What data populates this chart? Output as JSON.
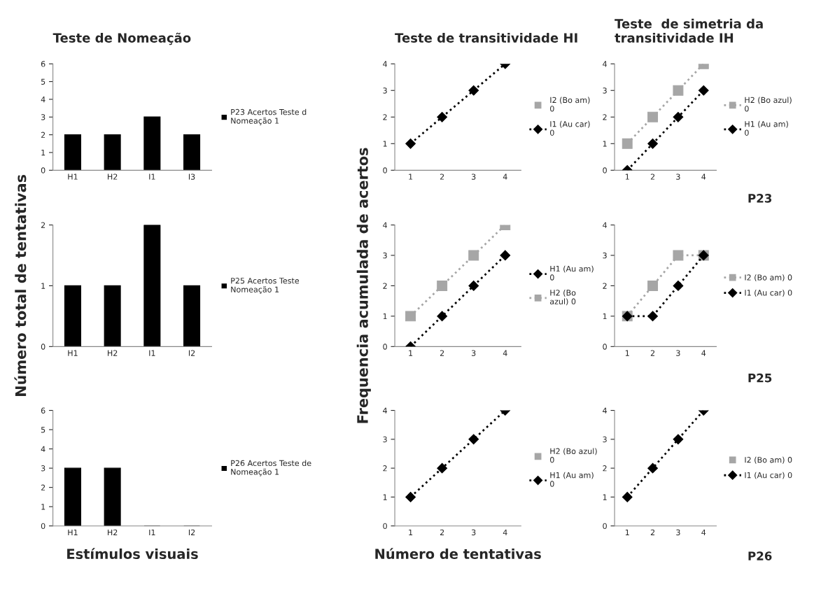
{
  "chart_data": [
    {
      "type": "bar",
      "title": "Teste de Nomeação",
      "categories": [
        "H1",
        "H2",
        "I1",
        "I3"
      ],
      "ylim": [
        0,
        6
      ],
      "yticks": [
        0,
        1,
        2,
        3,
        4,
        5,
        6
      ],
      "legend": "right",
      "grid": false,
      "series": [
        {
          "name": "P23 Acertos Teste d\nNomeação 1",
          "color": "#000000",
          "values": [
            2,
            2,
            3,
            2
          ]
        }
      ]
    },
    {
      "type": "line",
      "title": "Teste de transitividade HI",
      "categories": [
        "1",
        "2",
        "3",
        "4"
      ],
      "ylim": [
        0,
        4
      ],
      "yticks": [
        0,
        1,
        2,
        3,
        4
      ],
      "legend": "right",
      "grid": false,
      "series": [
        {
          "name": "I2 (Bo am)\n0",
          "color": "#a6a6a6",
          "marker": "square",
          "line_style": "none",
          "values": [
            null,
            null,
            null,
            null
          ]
        },
        {
          "name": "I1 (Au car)\n0",
          "color": "#000000",
          "marker": "diamond",
          "line_style": "dotted",
          "values": [
            1,
            2,
            3,
            4
          ]
        }
      ]
    },
    {
      "type": "line",
      "title": "Teste  de simetria da\ntransitividade IH",
      "categories": [
        "1",
        "2",
        "3",
        "4"
      ],
      "ylim": [
        0,
        4
      ],
      "yticks": [
        0,
        1,
        2,
        3,
        4
      ],
      "legend": "right",
      "grid": false,
      "annotations": [
        "P23"
      ],
      "series": [
        {
          "name": "H2 (Bo azul)\n0",
          "color": "#a6a6a6",
          "marker": "square",
          "line_style": "dotted",
          "values": [
            1,
            2,
            3,
            4
          ]
        },
        {
          "name": "H1 (Au am)\n0",
          "color": "#000000",
          "marker": "diamond",
          "line_style": "dotted",
          "values": [
            0,
            1,
            2,
            3
          ]
        }
      ]
    },
    {
      "type": "bar",
      "ylabel": "Número total de tentativas",
      "categories": [
        "H1",
        "H2",
        "I1",
        "I2"
      ],
      "ylim": [
        0,
        2
      ],
      "yticks": [
        0,
        1,
        2
      ],
      "legend": "right",
      "grid": false,
      "series": [
        {
          "name": "P25 Acertos Teste\nNomeação 1",
          "color": "#000000",
          "values": [
            1,
            1,
            2,
            1
          ]
        }
      ]
    },
    {
      "type": "line",
      "ylabel": "Frequencia acumulada de acertos",
      "categories": [
        "1",
        "2",
        "3",
        "4"
      ],
      "ylim": [
        0,
        4
      ],
      "yticks": [
        0,
        1,
        2,
        3,
        4
      ],
      "legend": "right",
      "grid": false,
      "series": [
        {
          "name": "H1 (Au am)\n0",
          "color": "#000000",
          "marker": "diamond",
          "line_style": "dotted",
          "values": [
            0,
            1,
            2,
            3
          ]
        },
        {
          "name": "H2 (Bo\nazul) 0",
          "color": "#a6a6a6",
          "marker": "square",
          "line_style": "dotted",
          "values": [
            1,
            2,
            3,
            4
          ]
        }
      ]
    },
    {
      "type": "line",
      "categories": [
        "1",
        "2",
        "3",
        "4"
      ],
      "ylim": [
        0,
        4
      ],
      "yticks": [
        0,
        1,
        2,
        3,
        4
      ],
      "legend": "right",
      "grid": false,
      "annotations": [
        "P25"
      ],
      "series": [
        {
          "name": "I2 (Bo am) 0",
          "color": "#a6a6a6",
          "marker": "square",
          "line_style": "dotted",
          "values": [
            1,
            2,
            3,
            3
          ]
        },
        {
          "name": "I1 (Au car) 0",
          "color": "#000000",
          "marker": "diamond",
          "line_style": "dotted",
          "values": [
            1,
            1,
            2,
            3
          ]
        }
      ]
    },
    {
      "type": "bar",
      "xlabel": "Estímulos visuais",
      "categories": [
        "H1",
        "H2",
        "I1",
        "I2"
      ],
      "ylim": [
        0,
        6
      ],
      "yticks": [
        0,
        1,
        2,
        3,
        4,
        5,
        6
      ],
      "legend": "right",
      "grid": false,
      "series": [
        {
          "name": "P26 Acertos Teste de\nNomeação 1",
          "color": "#000000",
          "values": [
            3,
            3,
            0,
            0
          ]
        }
      ]
    },
    {
      "type": "line",
      "xlabel": "Número de tentativas",
      "categories": [
        "1",
        "2",
        "3",
        "4"
      ],
      "ylim": [
        0,
        4
      ],
      "yticks": [
        0,
        1,
        2,
        3,
        4
      ],
      "legend": "right",
      "grid": false,
      "series": [
        {
          "name": "H2 (Bo azul)\n0",
          "color": "#a6a6a6",
          "marker": "square",
          "line_style": "none",
          "values": [
            null,
            null,
            null,
            null
          ]
        },
        {
          "name": "H1 (Au am)\n0",
          "color": "#000000",
          "marker": "diamond",
          "line_style": "dotted",
          "values": [
            1,
            2,
            3,
            4
          ]
        }
      ]
    },
    {
      "type": "line",
      "categories": [
        "1",
        "2",
        "3",
        "4"
      ],
      "ylim": [
        0,
        4
      ],
      "yticks": [
        0,
        1,
        2,
        3,
        4
      ],
      "legend": "right",
      "grid": false,
      "annotations": [
        "P26"
      ],
      "series": [
        {
          "name": "I2 (Bo am) 0",
          "color": "#a6a6a6",
          "marker": "square",
          "line_style": "none",
          "values": [
            null,
            null,
            null,
            null
          ]
        },
        {
          "name": "I1 (Au car) 0",
          "color": "#000000",
          "marker": "diamond",
          "line_style": "dotted",
          "values": [
            1,
            2,
            3,
            4
          ]
        }
      ]
    }
  ]
}
